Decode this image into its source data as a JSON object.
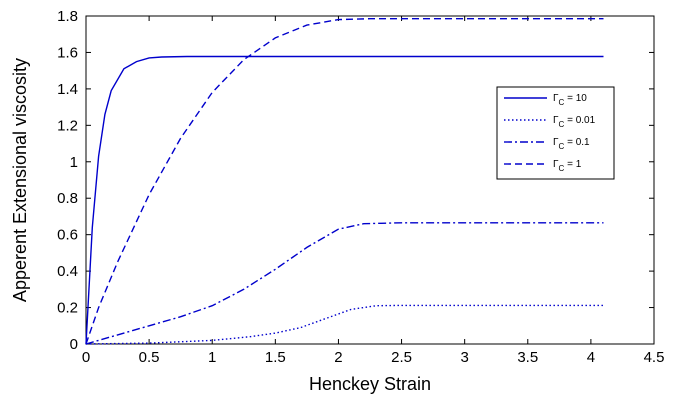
{
  "chart_data": {
    "type": "line",
    "title": "",
    "xlabel": "Henckey Strain",
    "ylabel": "Apperent Extensional viscosity",
    "xlim": [
      0,
      4.5
    ],
    "ylim": [
      0,
      1.8
    ],
    "xticks": [
      0,
      0.5,
      1,
      1.5,
      2,
      2.5,
      3,
      3.5,
      4,
      4.5
    ],
    "xtick_labels": [
      "0",
      "0.5",
      "1",
      "1.5",
      "2",
      "2.5",
      "3",
      "3.5",
      "4",
      "4.5"
    ],
    "yticks": [
      0,
      0.2,
      0.4,
      0.6,
      0.8,
      1,
      1.2,
      1.4,
      1.6,
      1.8
    ],
    "ytick_labels": [
      "0",
      "0.2",
      "0.4",
      "0.6",
      "0.8",
      "1",
      "1.2",
      "1.4",
      "1.6",
      "1.8"
    ],
    "grid": false,
    "legend_position": "right",
    "line_color": "#0000cc",
    "series": [
      {
        "name": "Γ_C = 10",
        "legend_main": "Γ",
        "legend_sub": "C",
        "legend_value": " = 10",
        "style": "solid",
        "x": [
          0,
          0.05,
          0.1,
          0.15,
          0.2,
          0.3,
          0.4,
          0.5,
          0.6,
          0.8,
          1.0,
          2.0,
          3.0,
          4.1
        ],
        "y": [
          0,
          0.64,
          1.03,
          1.26,
          1.39,
          1.51,
          1.55,
          1.57,
          1.575,
          1.578,
          1.578,
          1.578,
          1.578,
          1.578
        ]
      },
      {
        "name": "Γ_C = 0.01",
        "legend_main": "Γ",
        "legend_sub": "C",
        "legend_value": " = 0.01",
        "style": "dotted",
        "x": [
          0,
          0.5,
          1.0,
          1.3,
          1.5,
          1.7,
          1.9,
          2.1,
          2.3,
          2.5,
          3.0,
          3.5,
          4.1
        ],
        "y": [
          0,
          0.005,
          0.02,
          0.04,
          0.06,
          0.09,
          0.14,
          0.19,
          0.21,
          0.212,
          0.212,
          0.212,
          0.212
        ]
      },
      {
        "name": "Γ_C = 0.1",
        "legend_main": "Γ",
        "legend_sub": "C",
        "legend_value": " = 0.1",
        "style": "dashdot",
        "x": [
          0,
          0.25,
          0.5,
          0.75,
          1.0,
          1.25,
          1.5,
          1.75,
          2.0,
          2.2,
          2.5,
          3.0,
          3.5,
          4.1
        ],
        "y": [
          0,
          0.05,
          0.1,
          0.15,
          0.21,
          0.3,
          0.41,
          0.53,
          0.63,
          0.66,
          0.665,
          0.665,
          0.665,
          0.665
        ]
      },
      {
        "name": "Γ_C = 1",
        "legend_main": "Γ",
        "legend_sub": "C",
        "legend_value": " = 1",
        "style": "dashed",
        "x": [
          0,
          0.1,
          0.25,
          0.5,
          0.75,
          1.0,
          1.25,
          1.5,
          1.75,
          2.0,
          2.25,
          2.5,
          3.0,
          3.5,
          4.1
        ],
        "y": [
          0,
          0.2,
          0.45,
          0.82,
          1.13,
          1.38,
          1.56,
          1.68,
          1.75,
          1.78,
          1.785,
          1.785,
          1.785,
          1.785,
          1.785
        ]
      }
    ]
  }
}
